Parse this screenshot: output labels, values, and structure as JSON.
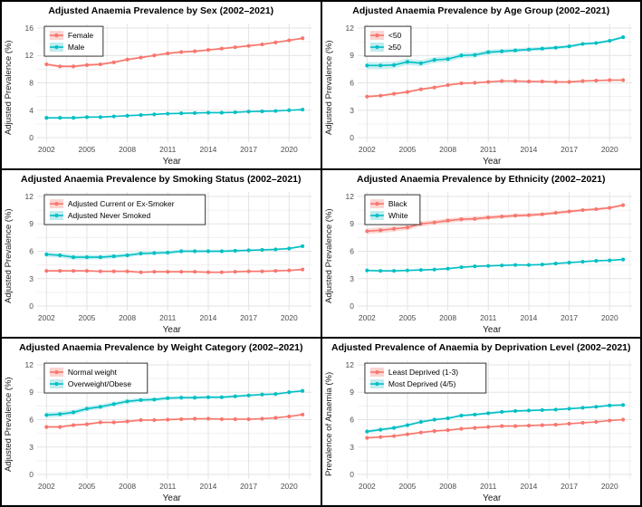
{
  "colors": {
    "red": "#F8766D",
    "teal": "#00BFC4",
    "red_ribbon": "#FAD4D1",
    "teal_ribbon": "#BFECEE",
    "grid_major": "#E3E3E3",
    "grid_minor": "#F0F0F0",
    "axis_text": "#4D4D4D",
    "title_color": "#000000",
    "panel_bg": "#FFFFFF",
    "frame": "#000000"
  },
  "years": [
    2002,
    2003,
    2004,
    2005,
    2006,
    2007,
    2008,
    2009,
    2010,
    2011,
    2012,
    2013,
    2014,
    2015,
    2016,
    2017,
    2018,
    2019,
    2020,
    2021
  ],
  "x_ticks": [
    2002,
    2005,
    2008,
    2011,
    2014,
    2017,
    2020
  ],
  "chart_data": [
    {
      "type": "line",
      "title": "Adjusted Anaemia Prevalence by Sex (2002–2021)",
      "ylabel": "Adjusted Prevalence (%)",
      "xlabel": "Year",
      "ylim": [
        0,
        16
      ],
      "yticks": [
        0,
        4,
        8,
        12,
        16
      ],
      "grid": true,
      "legend_position": "top-left",
      "series": [
        {
          "name": "Female",
          "color_key": "red",
          "band": [
            0.18,
            0.12
          ],
          "values": [
            10.7,
            10.4,
            10.4,
            10.6,
            10.7,
            11.0,
            11.4,
            11.7,
            12.0,
            12.3,
            12.5,
            12.6,
            12.8,
            13.0,
            13.2,
            13.4,
            13.6,
            13.9,
            14.2,
            14.5
          ]
        },
        {
          "name": "Male",
          "color_key": "teal",
          "band": [
            0.1,
            0.08
          ],
          "values": [
            2.9,
            2.9,
            2.9,
            3.0,
            3.0,
            3.1,
            3.2,
            3.3,
            3.4,
            3.5,
            3.55,
            3.6,
            3.65,
            3.65,
            3.7,
            3.8,
            3.85,
            3.9,
            4.0,
            4.1
          ]
        }
      ]
    },
    {
      "type": "line",
      "title": "Adjusted Anaemia Prevalence by Age Group (2002–2021)",
      "ylabel": "Adjusted Prevalence (%)",
      "xlabel": "Year",
      "ylim": [
        0,
        12
      ],
      "yticks": [
        0,
        3,
        6,
        9,
        12
      ],
      "grid": true,
      "legend_position": "top-left",
      "series": [
        {
          "name": "<50",
          "color_key": "red",
          "band": [
            0.12,
            0.1
          ],
          "values": [
            4.5,
            4.6,
            4.8,
            5.0,
            5.3,
            5.5,
            5.75,
            5.95,
            6.0,
            6.1,
            6.2,
            6.2,
            6.15,
            6.15,
            6.1,
            6.1,
            6.2,
            6.25,
            6.3,
            6.3
          ]
        },
        {
          "name": "≥50",
          "color_key": "teal",
          "band": [
            0.4,
            0.12
          ],
          "values": [
            7.9,
            7.9,
            7.95,
            8.3,
            8.15,
            8.5,
            8.6,
            9.0,
            9.05,
            9.35,
            9.45,
            9.55,
            9.65,
            9.75,
            9.85,
            10.0,
            10.25,
            10.35,
            10.6,
            11.0
          ]
        }
      ]
    },
    {
      "type": "line",
      "title": "Adjusted Anaemia Prevalence by Smoking Status (2002–2021)",
      "ylabel": "Adjusted Prevalence (%)",
      "xlabel": "Year",
      "ylim": [
        0,
        12
      ],
      "yticks": [
        0,
        3,
        6,
        9,
        12
      ],
      "grid": true,
      "legend_position": "top-left",
      "series": [
        {
          "name": "Adjusted Current or Ex-Smoker",
          "color_key": "red",
          "band": [
            0.1,
            0.08
          ],
          "values": [
            3.85,
            3.85,
            3.85,
            3.85,
            3.8,
            3.8,
            3.8,
            3.7,
            3.75,
            3.75,
            3.75,
            3.75,
            3.7,
            3.7,
            3.75,
            3.8,
            3.8,
            3.85,
            3.9,
            4.0
          ]
        },
        {
          "name": "Adjusted Never Smoked",
          "color_key": "teal",
          "band": [
            0.28,
            0.1
          ],
          "values": [
            5.65,
            5.55,
            5.35,
            5.35,
            5.35,
            5.45,
            5.55,
            5.75,
            5.8,
            5.85,
            6.0,
            6.0,
            6.0,
            6.0,
            6.05,
            6.1,
            6.15,
            6.2,
            6.3,
            6.55
          ]
        }
      ]
    },
    {
      "type": "line",
      "title": "Adjusted Anaemia Prevalence by Ethnicity (2002–2021)",
      "ylabel": "Adjusted Prevalence (%)",
      "xlabel": "Year",
      "ylim": [
        0,
        12
      ],
      "yticks": [
        0,
        3,
        6,
        9,
        12
      ],
      "grid": true,
      "legend_position": "top-left",
      "series": [
        {
          "name": "Black",
          "color_key": "red",
          "band": [
            0.32,
            0.12
          ],
          "values": [
            8.2,
            8.3,
            8.45,
            8.6,
            9.0,
            9.15,
            9.35,
            9.5,
            9.55,
            9.7,
            9.8,
            9.9,
            9.95,
            10.05,
            10.2,
            10.35,
            10.5,
            10.6,
            10.75,
            11.05
          ]
        },
        {
          "name": "White",
          "color_key": "teal",
          "band": [
            0.08,
            0.07
          ],
          "values": [
            3.9,
            3.85,
            3.85,
            3.9,
            3.95,
            4.0,
            4.1,
            4.25,
            4.35,
            4.4,
            4.45,
            4.5,
            4.5,
            4.55,
            4.65,
            4.75,
            4.85,
            4.95,
            5.0,
            5.1
          ]
        }
      ]
    },
    {
      "type": "line",
      "title": "Adjusted Anaemia Prevalence by Weight Category (2002–2021)",
      "ylabel": "Adjusted Prevalence (%)",
      "xlabel": "Year",
      "ylim": [
        0,
        12
      ],
      "yticks": [
        0,
        3,
        6,
        9,
        12
      ],
      "grid": true,
      "legend_position": "top-left",
      "series": [
        {
          "name": "Normal weight",
          "color_key": "red",
          "band": [
            0.12,
            0.09
          ],
          "values": [
            5.2,
            5.2,
            5.4,
            5.5,
            5.7,
            5.7,
            5.8,
            5.95,
            5.95,
            6.0,
            6.05,
            6.1,
            6.1,
            6.05,
            6.05,
            6.05,
            6.1,
            6.2,
            6.35,
            6.55
          ]
        },
        {
          "name": "Overweight/Obese",
          "color_key": "teal",
          "band": [
            0.3,
            0.1
          ],
          "values": [
            6.5,
            6.6,
            6.8,
            7.2,
            7.4,
            7.7,
            8.0,
            8.15,
            8.2,
            8.35,
            8.4,
            8.4,
            8.45,
            8.45,
            8.55,
            8.65,
            8.75,
            8.8,
            9.0,
            9.15
          ]
        }
      ]
    },
    {
      "type": "line",
      "title": "Adjusted Prevalence of Anaemia by Deprivation Level (2002–2021)",
      "ylabel": "Prevalence of Anaemia (%)",
      "xlabel": "Year",
      "ylim": [
        0,
        12
      ],
      "yticks": [
        0,
        3,
        6,
        9,
        12
      ],
      "grid": true,
      "legend_position": "top-left",
      "series": [
        {
          "name": "Least Deprived (1-3)",
          "color_key": "red",
          "band": [
            0.1,
            0.08
          ],
          "values": [
            4.0,
            4.1,
            4.2,
            4.4,
            4.6,
            4.75,
            4.85,
            5.0,
            5.1,
            5.2,
            5.3,
            5.3,
            5.35,
            5.4,
            5.45,
            5.55,
            5.65,
            5.75,
            5.9,
            6.0
          ]
        },
        {
          "name": "Most Deprived (4/5)",
          "color_key": "teal",
          "band": [
            0.16,
            0.09
          ],
          "values": [
            4.7,
            4.9,
            5.1,
            5.4,
            5.75,
            6.0,
            6.15,
            6.45,
            6.55,
            6.7,
            6.85,
            6.95,
            7.0,
            7.05,
            7.1,
            7.2,
            7.3,
            7.4,
            7.55,
            7.6
          ]
        }
      ]
    }
  ]
}
